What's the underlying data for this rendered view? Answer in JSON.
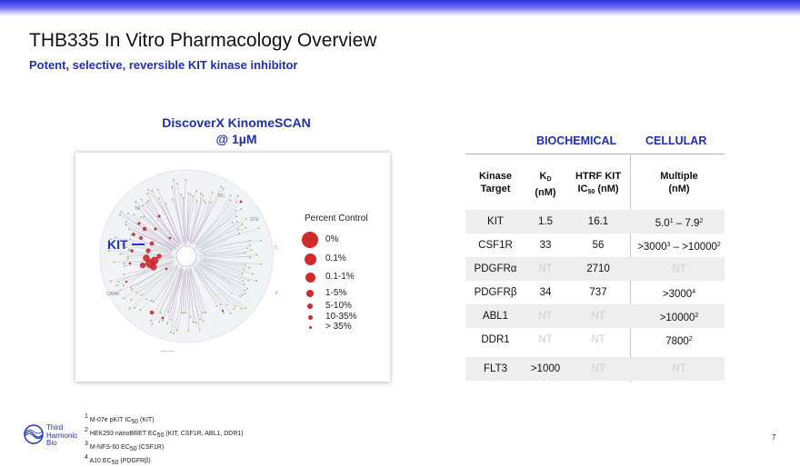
{
  "slide": {
    "title": "THB335 In Vitro Pharmacology Overview",
    "subtitle": "Potent, selective, reversible KIT kinase inhibitor",
    "page_number": "7",
    "accent_color": "#1f2fb0",
    "bar_color": "#2a2fd8"
  },
  "kinome": {
    "title_line1": "DiscoverX KinomeSCAN",
    "title_line2": "@ 1µM",
    "kit_label": "KIT",
    "group_labels": [
      "TKL",
      "TK",
      "STE",
      "CK1",
      "AGC",
      "OTHER",
      "CMGC",
      "CAMK"
    ],
    "legend": {
      "title": "Percent Control",
      "items": [
        "0%",
        "0.1%",
        "0.1-1%",
        "1-5%",
        "5-10%",
        "10-35%",
        "> 35%"
      ],
      "dot_color": "#d0282c"
    }
  },
  "table": {
    "group_headers": {
      "biochemical": "BIOCHEMICAL",
      "cellular": "CELLULAR"
    },
    "headers": {
      "target_line1": "Kinase",
      "target_line2": "Target",
      "kd_main": "K",
      "kd_sub": "D",
      "kd_unit": "(nM)",
      "htrf_line1": "HTRF KIT",
      "htrf_ic": "IC",
      "htrf_sub": "50",
      "htrf_unit": " (nM)",
      "cell_line1": "Multiple",
      "cell_line2": "(nM)"
    },
    "rows": [
      {
        "target": "KIT",
        "kd": "1.5",
        "htrf": "16.1",
        "cellular": {
          "a": "5.0",
          "a_sup": "1",
          "sep": " – ",
          "b": "7.9",
          "b_sup": "2"
        }
      },
      {
        "target": "CSF1R",
        "kd": "33",
        "htrf": "56",
        "cellular": {
          "a": ">3000",
          "a_sup": "3",
          "sep": " – ",
          "b": ">10000",
          "b_sup": "2"
        }
      },
      {
        "target": "PDGFRα",
        "kd": "NT",
        "htrf": "2710",
        "cellular": {
          "a": "NT"
        }
      },
      {
        "target": "PDGFRβ",
        "kd": "34",
        "htrf": "737",
        "cellular": {
          "a": ">3000",
          "a_sup": "4"
        }
      },
      {
        "target": "ABL1",
        "kd": "NT",
        "htrf": "NT",
        "cellular": {
          "a": ">10000",
          "a_sup": "2"
        }
      },
      {
        "target": "DDR1",
        "kd": "NT",
        "htrf": "NT",
        "cellular": {
          "a": "7800",
          "a_sup": "2"
        }
      },
      {
        "target": "FLT3",
        "kd": ">1000",
        "htrf": "NT",
        "cellular": {
          "a": "NT"
        }
      }
    ]
  },
  "footnotes": [
    {
      "num": "1",
      "pre": "M-07e pKIT IC",
      "sub": "50",
      "post": " (KIT)"
    },
    {
      "num": "2",
      "pre": "HEK293 nanoBRET EC",
      "sub": "50",
      "post": " (KIT, CSF1R, ABL1, DDR1)"
    },
    {
      "num": "3",
      "pre": "M-NFS-60 EC",
      "sub": "50",
      "post": " (CSF1R)"
    },
    {
      "num": "4",
      "pre": "A10 EC",
      "sub": "50",
      "post": " (PDGFRβ)"
    }
  ],
  "logo": {
    "line1": "Third",
    "line2": "Harmonic",
    "line3": "Bio"
  }
}
